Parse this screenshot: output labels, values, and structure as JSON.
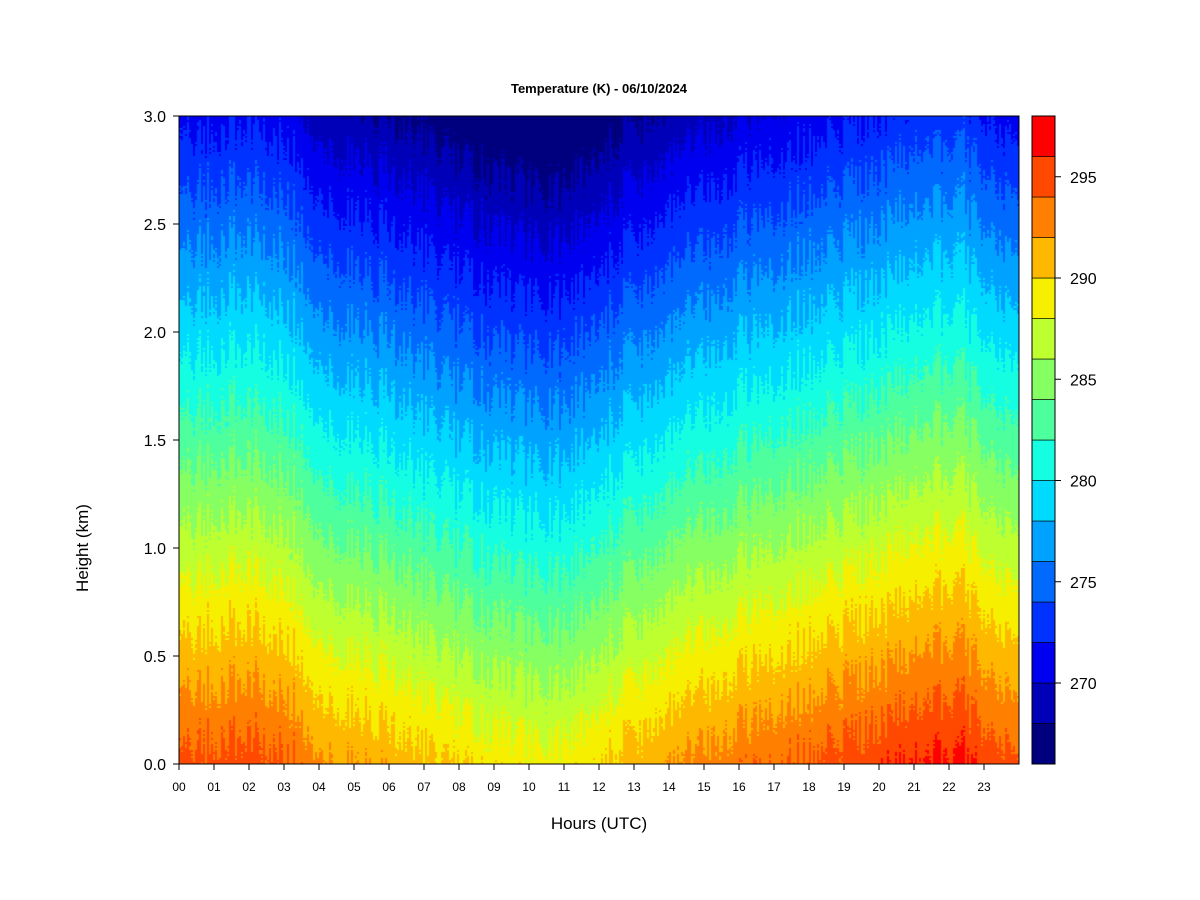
{
  "chart_data": {
    "type": "heatmap",
    "title": "Temperature (K) - 06/10/2024",
    "xlabel": "Hours (UTC)",
    "ylabel": "Height (km)",
    "x_ticks": [
      "00",
      "01",
      "02",
      "03",
      "04",
      "05",
      "06",
      "07",
      "08",
      "09",
      "10",
      "11",
      "12",
      "13",
      "14",
      "15",
      "16",
      "17",
      "18",
      "19",
      "20",
      "21",
      "22",
      "23"
    ],
    "xlim": [
      0,
      24
    ],
    "y_ticks": [
      "0.0",
      "0.5",
      "1.0",
      "1.5",
      "2.0",
      "2.5",
      "3.0"
    ],
    "ylim": [
      0,
      3.0
    ],
    "colorbar": {
      "range": [
        266,
        298
      ],
      "ticks": [
        270,
        275,
        280,
        285,
        290,
        295
      ],
      "tick_labels": [
        "270",
        "275",
        "280",
        "285",
        "290",
        "295"
      ],
      "levels": [
        266,
        268,
        270,
        272,
        274,
        276,
        278,
        280,
        282,
        284,
        286,
        288,
        290,
        292,
        294,
        296,
        298
      ],
      "colors": [
        "#00007f",
        "#0000b8",
        "#0000f0",
        "#0032ff",
        "#006aff",
        "#00a2ff",
        "#00daff",
        "#16fee1",
        "#4eff9e",
        "#86ff63",
        "#beff2f",
        "#f6ef00",
        "#ffb800",
        "#ff8000",
        "#ff4800",
        "#ff0000",
        "#c00000",
        "#7f0000"
      ]
    },
    "surface_temperature_by_hour": {
      "hours": [
        0,
        2,
        3.2,
        4,
        6,
        8,
        10,
        11,
        13,
        15,
        17,
        19,
        21,
        22.3,
        24
      ],
      "values_K": [
        294.5,
        295.2,
        294.3,
        292.4,
        291.4,
        289.8,
        288.9,
        288.9,
        291.2,
        292.8,
        294.0,
        295.0,
        296.0,
        296.5,
        294.0
      ]
    },
    "lapse_rate_K_per_km": 7.8
  }
}
